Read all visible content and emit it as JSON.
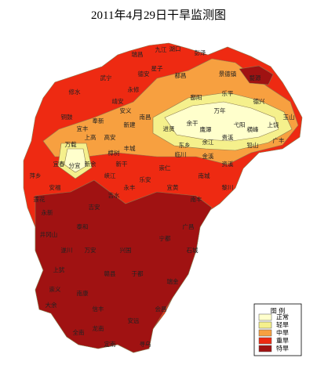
{
  "title": "2011年4月29日干旱监测图",
  "legend": {
    "title": "图 例",
    "items": [
      {
        "label": "正常",
        "color": "#ffffcc"
      },
      {
        "label": "轻旱",
        "color": "#f5f08c"
      },
      {
        "label": "中旱",
        "color": "#f7a040"
      },
      {
        "label": "重旱",
        "color": "#ee2a12"
      },
      {
        "label": "特旱",
        "color": "#a01212"
      }
    ]
  },
  "labels": [
    "湖口",
    "彭泽",
    "九江",
    "瑞昌",
    "德安",
    "星子",
    "都昌",
    "武宁",
    "修水",
    "永修",
    "鄱阳",
    "景德镇",
    "婺源",
    "乐平",
    "德兴",
    "铜鼓",
    "宜丰",
    "奉新",
    "靖安",
    "安义",
    "新建",
    "南昌",
    "进贤",
    "余干",
    "万年",
    "余江",
    "贵溪",
    "弋阳",
    "横峰",
    "上饶",
    "玉山",
    "广丰",
    "铅山",
    "鹰潭",
    "东乡",
    "高安",
    "上高",
    "万载",
    "宜春",
    "萍乡",
    "新余",
    "分宜",
    "丰城",
    "樟树",
    "临川",
    "金溪",
    "资溪",
    "崇仁",
    "乐安",
    "南城",
    "黎川",
    "南丰",
    "宜黄",
    "永丰",
    "峡江",
    "新干",
    "吉水",
    "吉安",
    "安福",
    "莲花",
    "永新",
    "井冈山",
    "泰和",
    "遂川",
    "万安",
    "兴国",
    "广昌",
    "宁都",
    "石城",
    "瑞金",
    "于都",
    "赣县",
    "上犹",
    "崇义",
    "南康",
    "大余",
    "信丰",
    "会昌",
    "安远",
    "全南",
    "龙南",
    "定南",
    "寻乌"
  ]
}
